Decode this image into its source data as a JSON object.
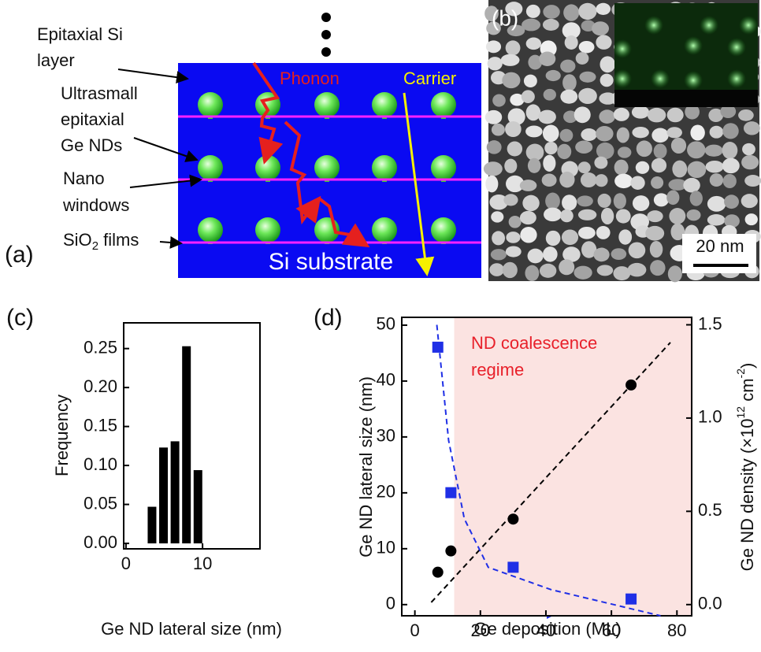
{
  "panel_a": {
    "label": "(a)",
    "epitaxial_si": [
      "Epitaxial Si",
      "layer"
    ],
    "ge_nds": [
      "Ultrasmall",
      "epitaxial",
      "Ge NDs"
    ],
    "nano_windows": [
      "Nano",
      "windows"
    ],
    "sio2": {
      "base": "SiO",
      "sub": "2",
      "rest": " films"
    },
    "phonon": "Phonon",
    "carrier": "Carrier",
    "substrate": "Si substrate"
  },
  "panel_b": {
    "label": "(b)",
    "scale_bar": "20 nm"
  },
  "chart_data": [
    {
      "type": "bar",
      "panel": "(c)",
      "xlabel": "Ge ND lateral size (nm)",
      "ylabel": "Frequency",
      "x": [
        3.4,
        4.9,
        6.4,
        7.9,
        9.4
      ],
      "values": [
        0.047,
        0.123,
        0.131,
        0.253,
        0.094
      ],
      "color": "#000000",
      "xlim": [
        -0.3,
        17.5
      ],
      "ylim": [
        -0.007,
        0.283
      ],
      "xticks": [
        0,
        10
      ],
      "yticks": [
        {
          "value": 0,
          "label": "0.00"
        },
        0.05,
        {
          "value": 0.1,
          "label": "0.10"
        },
        0.15,
        {
          "value": 0.2,
          "label": "0.20"
        },
        0.25
      ]
    },
    {
      "type": "scatter",
      "panel": "(d)",
      "xlabel": "Ge deposition (ML)",
      "ylabel": "Ge ND lateral size (nm)",
      "y2label": [
        "Ge ND density (×10",
        "12",
        " cm",
        "-2",
        ")"
      ],
      "annotation": [
        "ND coalescence",
        "regime"
      ],
      "annotation_color": "#e8202a",
      "shade_from": 12,
      "shade_color": "#fbe3e1",
      "xlim": [
        -4,
        84.5
      ],
      "ylim": [
        -2,
        51.4
      ],
      "y2lim": [
        -0.06,
        1.54
      ],
      "xticks": [
        0,
        20,
        40,
        60,
        80
      ],
      "yticks": [
        0,
        10,
        20,
        30,
        40,
        50
      ],
      "y2ticks": [
        {
          "value": 0,
          "label": "0.0"
        },
        0.5,
        {
          "value": 1,
          "label": "1.0"
        },
        1.5
      ],
      "series": [
        {
          "marker": "circle",
          "color": "#000000",
          "x": [
            7,
            11,
            30,
            66
          ],
          "values": [
            5.8,
            9.6,
            15.3,
            39.3
          ]
        },
        {
          "marker": "square",
          "color": "#1f2fe6",
          "axis": "y2",
          "x": [
            7,
            11,
            30,
            66
          ],
          "values": [
            1.38,
            0.6,
            0.2,
            0.03
          ]
        }
      ],
      "fits": [
        {
          "color": "#000000",
          "x": [
            5,
            78
          ],
          "values": [
            0.4,
            46.9
          ]
        },
        {
          "color": "#1f2fe6",
          "axis": "y2",
          "x": [
            6.7,
            10.3,
            15.1,
            22.4,
            41.6,
            75
          ],
          "values": [
            1.5,
            0.88,
            0.46,
            0.2,
            0.08,
            -0.06
          ]
        }
      ]
    }
  ]
}
